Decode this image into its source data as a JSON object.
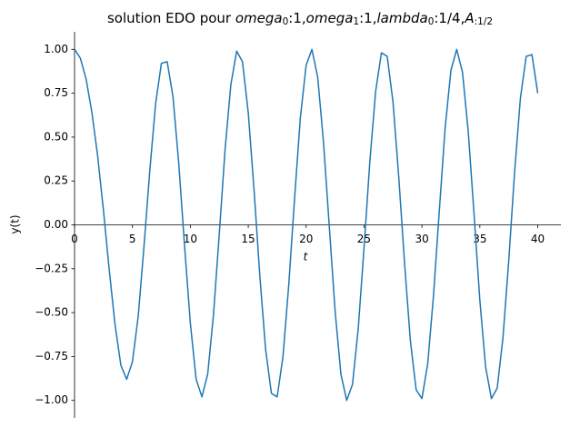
{
  "chart_data": {
    "type": "line",
    "title": [
      "solution EDO pour ",
      "omega",
      "0",
      ":1,",
      "omega",
      "1",
      ":1,",
      "lambda",
      "0",
      ":1/4,",
      "A",
      ":1/2"
    ],
    "xlabel": "t",
    "ylabel": "y(t)",
    "x": [
      0,
      0.5,
      1,
      1.5,
      2,
      2.5,
      3,
      3.5,
      4,
      4.5,
      5,
      5.5,
      6,
      6.5,
      7,
      7.5,
      8,
      8.5,
      9,
      9.5,
      10,
      10.5,
      11,
      11.5,
      12,
      12.5,
      13,
      13.5,
      14,
      14.5,
      15,
      15.5,
      16,
      16.5,
      17,
      17.5,
      18,
      18.5,
      19,
      19.5,
      20,
      20.5,
      21,
      21.5,
      22,
      22.5,
      23,
      23.5,
      24,
      24.5,
      25,
      25.5,
      26,
      26.5,
      27,
      27.5,
      28,
      28.5,
      29,
      29.5,
      30,
      30.5,
      31,
      31.5,
      32,
      32.5,
      33,
      33.5,
      34,
      34.5,
      35,
      35.5,
      36,
      36.5,
      37,
      37.5,
      38,
      38.5,
      39,
      39.5,
      40
    ],
    "series": [
      {
        "color": "#1f77b4",
        "values": [
          1,
          0.95,
          0.83,
          0.64,
          0.39,
          0.08,
          -0.26,
          -0.57,
          -0.8,
          -0.88,
          -0.78,
          -0.52,
          -0.12,
          0.31,
          0.69,
          0.92,
          0.93,
          0.73,
          0.35,
          -0.12,
          -0.56,
          -0.88,
          -0.98,
          -0.85,
          -0.51,
          -0.05,
          0.43,
          0.8,
          0.99,
          0.93,
          0.64,
          0.2,
          -0.29,
          -0.71,
          -0.96,
          -0.98,
          -0.75,
          -0.34,
          0.15,
          0.61,
          0.91,
          1,
          0.84,
          0.47,
          -0.01,
          -0.49,
          -0.85,
          -1,
          -0.91,
          -0.59,
          -0.13,
          0.36,
          0.76,
          0.98,
          0.96,
          0.7,
          0.27,
          -0.22,
          -0.66,
          -0.94,
          -0.99,
          -0.79,
          -0.4,
          0.08,
          0.55,
          0.88,
          1,
          0.87,
          0.53,
          0.06,
          -0.43,
          -0.81,
          -0.99,
          -0.93,
          -0.64,
          -0.2,
          0.3,
          0.72,
          0.96,
          0.97,
          0.75
        ]
      }
    ],
    "xlim": [
      0,
      42
    ],
    "ylim": [
      -1.1,
      1.1
    ],
    "xticks": [
      0,
      5,
      10,
      15,
      20,
      25,
      30,
      35,
      40
    ],
    "yticks": [
      {
        "value": -1,
        "label": "−1.00"
      },
      {
        "value": -0.75,
        "label": "−0.75"
      },
      {
        "value": -0.5,
        "label": "−0.50"
      },
      {
        "value": -0.25,
        "label": "−0.25"
      },
      {
        "value": 0,
        "label": "0.00"
      },
      {
        "value": 0.25,
        "label": "0.25"
      },
      {
        "value": 0.5,
        "label": "0.50"
      },
      {
        "value": 0.75,
        "label": "0.75"
      },
      {
        "value": 1,
        "label": "1.00"
      }
    ]
  }
}
